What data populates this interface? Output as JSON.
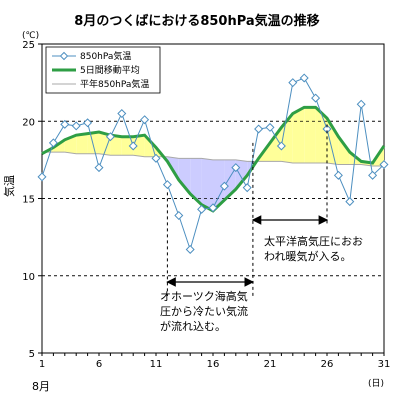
{
  "chart_data": {
    "type": "line",
    "title": "8月のつくばにおける850hPa気温の推移",
    "ylabel": "気温",
    "yunit": "(℃)",
    "xlabel": "8月",
    "xunit": "(日)",
    "ylim": [
      5,
      25
    ],
    "xlim": [
      1,
      31
    ],
    "yticks": [
      5,
      10,
      15,
      20,
      25
    ],
    "xticks": [
      1,
      6,
      11,
      16,
      21,
      26,
      31
    ],
    "grid": "horizontal dashed",
    "legend_position": "top-left",
    "x": [
      1,
      2,
      3,
      4,
      5,
      6,
      7,
      8,
      9,
      10,
      11,
      12,
      13,
      14,
      15,
      16,
      17,
      18,
      19,
      20,
      21,
      22,
      23,
      24,
      25,
      26,
      27,
      28,
      29,
      30,
      31
    ],
    "series": [
      {
        "name": "850hPa気温",
        "marker": "diamond",
        "color": "#4d8fc0",
        "values": [
          16.4,
          18.6,
          19.8,
          19.7,
          19.9,
          17.0,
          19.0,
          20.5,
          18.4,
          20.1,
          17.6,
          15.9,
          13.9,
          11.7,
          14.3,
          14.4,
          15.8,
          17.0,
          15.7,
          19.5,
          19.6,
          18.4,
          22.5,
          22.8,
          21.5,
          19.5,
          16.5,
          14.8,
          21.1,
          16.5,
          17.2
        ]
      },
      {
        "name": "5日間移動平均",
        "color": "#2e9e44",
        "values": [
          17.9,
          18.3,
          18.8,
          19.1,
          19.2,
          19.3,
          19.1,
          19.0,
          19.0,
          19.1,
          18.3,
          17.4,
          16.2,
          15.3,
          14.6,
          14.2,
          14.9,
          15.6,
          16.5,
          17.6,
          18.6,
          19.6,
          20.5,
          20.9,
          20.9,
          20.2,
          19.0,
          18.0,
          17.4,
          17.3,
          18.4
        ]
      },
      {
        "name": "平年850hPa気温",
        "color": "#a8a8a8",
        "values": [
          18.0,
          18.0,
          18.0,
          17.9,
          17.9,
          17.9,
          17.8,
          17.8,
          17.8,
          17.7,
          17.7,
          17.7,
          17.6,
          17.6,
          17.6,
          17.5,
          17.5,
          17.5,
          17.4,
          17.4,
          17.4,
          17.4,
          17.3,
          17.3,
          17.3,
          17.3,
          17.2,
          17.2,
          17.2,
          17.1,
          17.1
        ]
      }
    ],
    "fill_above_color": "#ffff99",
    "fill_below_color": "#ccccff",
    "annotations": [
      {
        "text_lines": [
          "オホーツク海高気",
          "圧から冷たい気流",
          "が流れ込む。"
        ],
        "x_start": 12,
        "x_end": 19.5
      },
      {
        "text_lines": [
          "太平洋高気圧におお",
          "われ暖気が入る。"
        ],
        "x_start": 19.5,
        "x_end": 26
      }
    ]
  }
}
